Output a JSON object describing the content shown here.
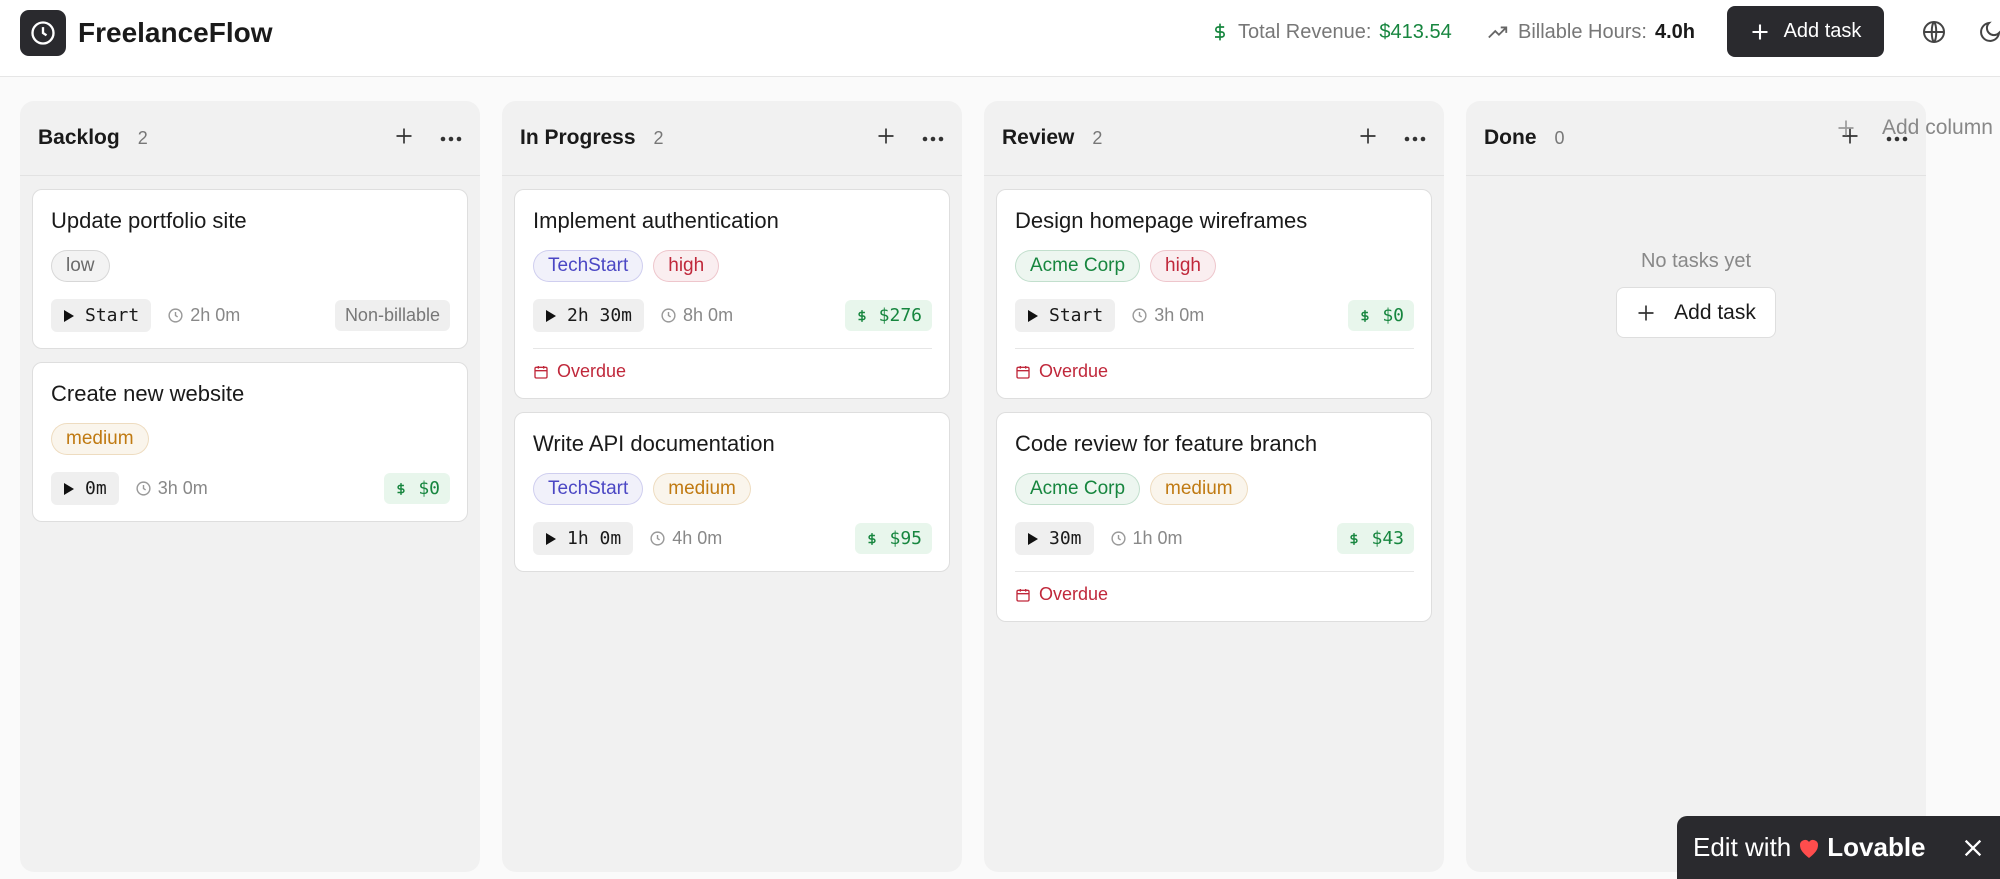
{
  "header": {
    "app_name": "FreelanceFlow",
    "revenue_label": "Total Revenue:",
    "revenue_value": "$413.54",
    "hours_label": "Billable Hours:",
    "hours_value": "4.0h",
    "add_task": "Add task"
  },
  "columns": [
    {
      "title": "Backlog",
      "count": 2,
      "cards": [
        {
          "title": "Update portfolio site",
          "tags": [
            {
              "text": "low",
              "color": "#6b6b6b"
            }
          ],
          "timer": "Start",
          "estimate": "2h 0m",
          "billing_note": "Non-billable"
        },
        {
          "title": "Create new website",
          "tags": [
            {
              "text": "medium",
              "color": "#c07a12"
            }
          ],
          "timer": "0m",
          "estimate": "3h 0m",
          "amount": "$0"
        }
      ]
    },
    {
      "title": "In Progress",
      "count": 2,
      "cards": [
        {
          "title": "Implement authentication",
          "tags": [
            {
              "text": "TechStart",
              "color": "#4b47c4"
            },
            {
              "text": "high",
              "color": "#c0283b"
            }
          ],
          "timer": "2h 30m",
          "estimate": "8h 0m",
          "amount": "$276",
          "due": "Overdue"
        },
        {
          "title": "Write API documentation",
          "tags": [
            {
              "text": "TechStart",
              "color": "#4b47c4"
            },
            {
              "text": "medium",
              "color": "#c07a12"
            }
          ],
          "timer": "1h 0m",
          "estimate": "4h 0m",
          "amount": "$95"
        }
      ]
    },
    {
      "title": "Review",
      "count": 2,
      "cards": [
        {
          "title": "Design homepage wireframes",
          "tags": [
            {
              "text": "Acme Corp",
              "color": "#17863f"
            },
            {
              "text": "high",
              "color": "#c0283b"
            }
          ],
          "timer": "Start",
          "estimate": "3h 0m",
          "amount": "$0",
          "due": "Overdue"
        },
        {
          "title": "Code review for feature branch",
          "tags": [
            {
              "text": "Acme Corp",
              "color": "#17863f"
            },
            {
              "text": "medium",
              "color": "#c07a12"
            }
          ],
          "timer": "30m",
          "estimate": "1h 0m",
          "amount": "$43",
          "due": "Overdue"
        }
      ]
    },
    {
      "title": "Done",
      "count": 0,
      "cards": [],
      "empty_text": "No tasks yet",
      "empty_button": "Add task"
    }
  ],
  "add_column": "Add column",
  "badge": {
    "text": "Edit with",
    "brand": "Lovable"
  }
}
